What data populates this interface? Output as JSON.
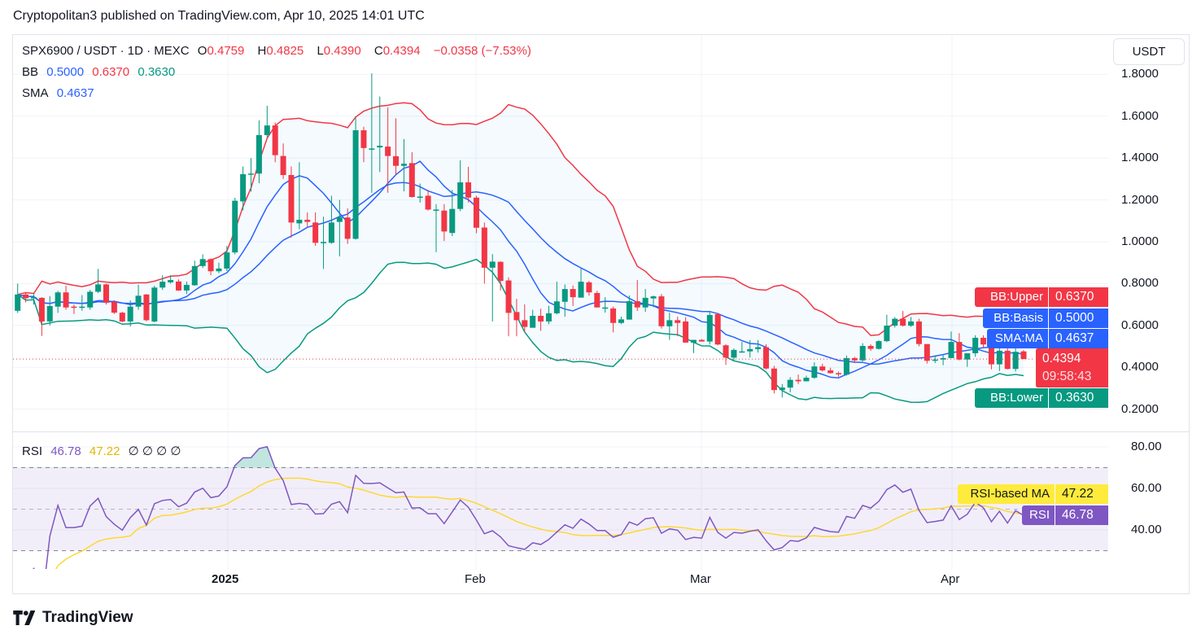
{
  "header": {
    "published": "Cryptopolitan3 published on TradingView.com, Apr 10, 2025 14:01 UTC"
  },
  "legend": {
    "symbol": "SPX6900 / USDT · 1D · MEXC",
    "o_label": "O",
    "o": "0.4759",
    "h_label": "H",
    "h": "0.4825",
    "l_label": "L",
    "l": "0.4390",
    "c_label": "C",
    "c": "0.4394",
    "change": "−0.0358 (−7.53%)",
    "bb_label": "BB",
    "bb_basis": "0.5000",
    "bb_upper": "0.6370",
    "bb_lower": "0.3630",
    "sma_label": "SMA",
    "sma": "0.4637",
    "rsi_label": "RSI",
    "rsi": "46.78",
    "rsi_ma": "47.22",
    "rsi_empty": "∅ ∅ ∅ ∅"
  },
  "currency_button": "USDT",
  "price_tags": {
    "bb_upper_name": "BB:Upper",
    "bb_upper": "0.6370",
    "bb_basis_name": "BB:Basis",
    "bb_basis": "0.5000",
    "sma_name": "SMA:MA",
    "sma": "0.4637",
    "last_price": "0.4394",
    "countdown": "09:58:43",
    "bb_lower_name": "BB:Lower",
    "bb_lower": "0.3630",
    "rsi_ma_name": "RSI-based MA",
    "rsi_ma": "47.22",
    "rsi_name": "RSI",
    "rsi": "46.78"
  },
  "footer": {
    "brand": "TradingView"
  },
  "colors": {
    "up": "#089981",
    "down": "#f23645",
    "bb_upper": "#f23645",
    "bb_basis": "#2962ff",
    "bb_lower": "#089981",
    "sma": "#2962ff",
    "rsi": "#7e57c2",
    "rsi_ma": "#fdd835"
  },
  "chart_data": {
    "type": "candlestick",
    "title": "SPX6900 / USDT · 1D · MEXC",
    "x_ticks": [
      "2025",
      "Feb",
      "Mar",
      "Apr"
    ],
    "y_ticks": [
      "1.8000",
      "1.6000",
      "1.4000",
      "1.2000",
      "1.0000",
      "0.8000",
      "0.6000",
      "0.4000",
      "0.2000"
    ],
    "y_range": [
      0.1,
      1.85
    ],
    "rsi_ticks": [
      "80.00",
      "60.00",
      "40.00"
    ],
    "rsi_levels": [
      70,
      50,
      30
    ],
    "grid": true,
    "indicators": {
      "bollinger": {
        "length": 20,
        "mult": 2
      },
      "sma": {
        "length": 9
      },
      "rsi": {
        "length": 14,
        "ma_length": 14
      }
    },
    "candles_ohlc": [
      [
        0.67,
        0.8,
        0.66,
        0.748
      ],
      [
        0.748,
        0.755,
        0.71,
        0.73
      ],
      [
        0.73,
        0.75,
        0.7,
        0.735
      ],
      [
        0.732,
        0.735,
        0.55,
        0.619
      ],
      [
        0.619,
        0.74,
        0.6,
        0.693
      ],
      [
        0.69,
        0.765,
        0.66,
        0.758
      ],
      [
        0.758,
        0.79,
        0.675,
        0.686
      ],
      [
        0.69,
        0.7,
        0.655,
        0.686
      ],
      [
        0.686,
        0.745,
        0.67,
        0.69
      ],
      [
        0.686,
        0.77,
        0.675,
        0.761
      ],
      [
        0.761,
        0.87,
        0.755,
        0.796
      ],
      [
        0.796,
        0.8,
        0.7,
        0.709
      ],
      [
        0.713,
        0.72,
        0.655,
        0.661
      ],
      [
        0.661,
        0.665,
        0.615,
        0.619
      ],
      [
        0.619,
        0.72,
        0.595,
        0.69
      ],
      [
        0.69,
        0.795,
        0.675,
        0.742
      ],
      [
        0.748,
        0.75,
        0.62,
        0.625
      ],
      [
        0.619,
        0.79,
        0.615,
        0.781
      ],
      [
        0.781,
        0.84,
        0.77,
        0.809
      ],
      [
        0.806,
        0.84,
        0.8,
        0.817
      ],
      [
        0.81,
        0.82,
        0.765,
        0.767
      ],
      [
        0.767,
        0.81,
        0.75,
        0.794
      ],
      [
        0.792,
        0.91,
        0.79,
        0.884
      ],
      [
        0.884,
        0.94,
        0.875,
        0.917
      ],
      [
        0.917,
        0.92,
        0.84,
        0.859
      ],
      [
        0.859,
        0.9,
        0.85,
        0.872
      ],
      [
        0.872,
        0.98,
        0.86,
        0.949
      ],
      [
        0.949,
        1.21,
        0.94,
        1.196
      ],
      [
        1.193,
        1.36,
        1.15,
        1.323
      ],
      [
        1.323,
        1.4,
        1.24,
        1.326
      ],
      [
        1.326,
        1.58,
        1.28,
        1.51
      ],
      [
        1.51,
        1.65,
        1.5,
        1.556
      ],
      [
        1.556,
        1.57,
        1.38,
        1.414
      ],
      [
        1.41,
        1.47,
        1.3,
        1.319
      ],
      [
        1.319,
        1.36,
        1.02,
        1.092
      ],
      [
        1.088,
        1.38,
        1.06,
        1.105
      ],
      [
        1.105,
        1.14,
        1.07,
        1.095
      ],
      [
        1.092,
        1.14,
        0.98,
        0.995
      ],
      [
        0.995,
        1.12,
        0.87,
        0.999
      ],
      [
        0.995,
        1.22,
        0.99,
        1.092
      ],
      [
        1.095,
        1.2,
        0.93,
        1.118
      ],
      [
        1.116,
        1.16,
        0.99,
        1.014
      ],
      [
        1.014,
        1.6,
        1.01,
        1.533
      ],
      [
        1.533,
        1.55,
        1.38,
        1.448
      ],
      [
        1.446,
        1.805,
        1.234,
        1.446
      ],
      [
        1.451,
        1.694,
        1.333,
        1.459
      ],
      [
        1.455,
        1.643,
        1.234,
        1.41
      ],
      [
        1.409,
        1.59,
        1.32,
        1.363
      ],
      [
        1.363,
        1.491,
        1.241,
        1.373
      ],
      [
        1.376,
        1.428,
        1.211,
        1.214
      ],
      [
        1.214,
        1.278,
        1.187,
        1.216
      ],
      [
        1.22,
        1.248,
        1.149,
        1.154
      ],
      [
        1.154,
        1.18,
        0.95,
        1.154
      ],
      [
        1.149,
        1.18,
        1.004,
        1.049
      ],
      [
        1.042,
        1.248,
        1.027,
        1.157
      ],
      [
        1.157,
        1.389,
        1.146,
        1.284
      ],
      [
        1.284,
        1.358,
        1.188,
        1.211
      ],
      [
        1.211,
        1.22,
        1.041,
        1.067
      ],
      [
        1.068,
        1.092,
        0.8,
        0.876
      ],
      [
        0.876,
        0.941,
        0.619,
        0.905
      ],
      [
        0.904,
        0.907,
        0.767,
        0.813
      ],
      [
        0.815,
        0.83,
        0.548,
        0.66
      ],
      [
        0.664,
        0.727,
        0.548,
        0.625
      ],
      [
        0.625,
        0.701,
        0.567,
        0.593
      ],
      [
        0.589,
        0.675,
        0.589,
        0.646
      ],
      [
        0.646,
        0.68,
        0.574,
        0.619
      ],
      [
        0.619,
        0.694,
        0.606,
        0.658
      ],
      [
        0.658,
        0.809,
        0.653,
        0.715
      ],
      [
        0.713,
        0.796,
        0.642,
        0.774
      ],
      [
        0.774,
        0.791,
        0.693,
        0.735
      ],
      [
        0.733,
        0.872,
        0.733,
        0.809
      ],
      [
        0.806,
        0.813,
        0.742,
        0.758
      ],
      [
        0.755,
        0.765,
        0.686,
        0.686
      ],
      [
        0.686,
        0.735,
        0.661,
        0.686
      ],
      [
        0.681,
        0.69,
        0.567,
        0.612
      ],
      [
        0.612,
        0.642,
        0.606,
        0.629
      ],
      [
        0.628,
        0.743,
        0.628,
        0.716
      ],
      [
        0.716,
        0.817,
        0.669,
        0.686
      ],
      [
        0.686,
        0.774,
        0.665,
        0.732
      ],
      [
        0.729,
        0.743,
        0.687,
        0.739
      ],
      [
        0.739,
        0.75,
        0.585,
        0.596
      ],
      [
        0.596,
        0.661,
        0.531,
        0.625
      ],
      [
        0.625,
        0.642,
        0.548,
        0.612
      ],
      [
        0.619,
        0.64,
        0.518,
        0.518
      ],
      [
        0.518,
        0.531,
        0.468,
        0.531
      ],
      [
        0.531,
        0.535,
        0.527,
        0.523
      ],
      [
        0.523,
        0.667,
        0.509,
        0.65
      ],
      [
        0.654,
        0.66,
        0.505,
        0.509
      ],
      [
        0.505,
        0.51,
        0.411,
        0.446
      ],
      [
        0.446,
        0.49,
        0.43,
        0.483
      ],
      [
        0.476,
        0.521,
        0.47,
        0.476
      ],
      [
        0.476,
        0.53,
        0.447,
        0.487
      ],
      [
        0.487,
        0.53,
        0.47,
        0.496
      ],
      [
        0.496,
        0.51,
        0.39,
        0.394
      ],
      [
        0.394,
        0.407,
        0.275,
        0.291
      ],
      [
        0.291,
        0.32,
        0.256,
        0.303
      ],
      [
        0.303,
        0.353,
        0.28,
        0.34
      ],
      [
        0.34,
        0.365,
        0.32,
        0.333
      ],
      [
        0.333,
        0.36,
        0.333,
        0.35
      ],
      [
        0.35,
        0.424,
        0.345,
        0.404
      ],
      [
        0.404,
        0.417,
        0.38,
        0.385
      ],
      [
        0.385,
        0.398,
        0.37,
        0.372
      ],
      [
        0.372,
        0.38,
        0.355,
        0.368
      ],
      [
        0.365,
        0.456,
        0.36,
        0.444
      ],
      [
        0.444,
        0.45,
        0.42,
        0.433
      ],
      [
        0.433,
        0.515,
        0.428,
        0.502
      ],
      [
        0.502,
        0.51,
        0.478,
        0.488
      ],
      [
        0.488,
        0.53,
        0.485,
        0.525
      ],
      [
        0.525,
        0.651,
        0.52,
        0.599
      ],
      [
        0.599,
        0.64,
        0.59,
        0.632
      ],
      [
        0.632,
        0.669,
        0.595,
        0.599
      ],
      [
        0.599,
        0.64,
        0.593,
        0.619
      ],
      [
        0.619,
        0.632,
        0.5,
        0.511
      ],
      [
        0.511,
        0.511,
        0.418,
        0.431
      ],
      [
        0.431,
        0.457,
        0.42,
        0.437
      ],
      [
        0.437,
        0.457,
        0.41,
        0.444
      ],
      [
        0.444,
        0.571,
        0.444,
        0.521
      ],
      [
        0.521,
        0.563,
        0.433,
        0.437
      ],
      [
        0.437,
        0.467,
        0.402,
        0.467
      ],
      [
        0.467,
        0.553,
        0.45,
        0.541
      ],
      [
        0.541,
        0.553,
        0.495,
        0.509
      ],
      [
        0.509,
        0.51,
        0.39,
        0.414
      ],
      [
        0.414,
        0.541,
        0.382,
        0.479
      ],
      [
        0.479,
        0.49,
        0.39,
        0.392
      ],
      [
        0.392,
        0.517,
        0.38,
        0.474
      ],
      [
        0.4759,
        0.4825,
        0.439,
        0.4394
      ]
    ]
  }
}
